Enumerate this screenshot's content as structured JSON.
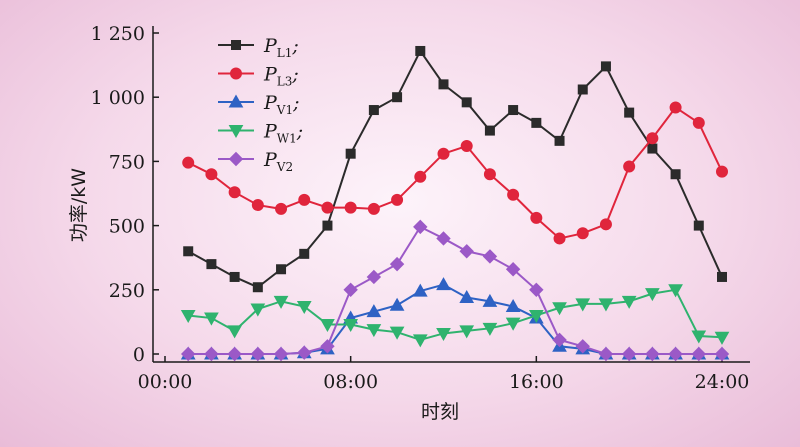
{
  "chart_data": {
    "type": "line",
    "xlabel": "时刻",
    "ylabel": "功率/kW",
    "x_ticks": [
      "00:00",
      "08:00",
      "16:00",
      "24:00"
    ],
    "xlim": [
      0,
      24
    ],
    "ylim": [
      0,
      1250
    ],
    "y_ticks": [
      {
        "value": 0,
        "label": "0"
      },
      {
        "value": 250,
        "label": "250"
      },
      {
        "value": 500,
        "label": "500"
      },
      {
        "value": 750,
        "label": "750"
      },
      {
        "value": 1000,
        "label": "1 000"
      },
      {
        "value": 1250,
        "label": "1 250"
      }
    ],
    "x": [
      1,
      2,
      3,
      4,
      5,
      6,
      7,
      8,
      9,
      10,
      11,
      12,
      13,
      14,
      15,
      16,
      17,
      18,
      19,
      20,
      21,
      22,
      23,
      24
    ],
    "legend_position": "top-left",
    "grid": false,
    "series": [
      {
        "name": "P",
        "sub": "L1",
        "suffix": ";",
        "color": "#2b2b2b",
        "marker": "square",
        "values": [
          400,
          350,
          300,
          260,
          330,
          390,
          500,
          780,
          950,
          1000,
          1180,
          1050,
          980,
          870,
          950,
          900,
          830,
          1030,
          1120,
          940,
          800,
          700,
          500,
          300
        ]
      },
      {
        "name": "P",
        "sub": "L3",
        "suffix": ";",
        "color": "#e0253c",
        "marker": "circle",
        "values": [
          745,
          700,
          630,
          580,
          565,
          600,
          570,
          570,
          565,
          600,
          690,
          780,
          810,
          700,
          620,
          530,
          450,
          470,
          505,
          730,
          840,
          960,
          900,
          710
        ]
      },
      {
        "name": "P",
        "sub": "V1",
        "suffix": ";",
        "color": "#2e62c4",
        "marker": "triangle-up",
        "values": [
          0,
          0,
          0,
          0,
          0,
          5,
          20,
          140,
          165,
          190,
          245,
          270,
          220,
          205,
          185,
          140,
          30,
          20,
          0,
          0,
          0,
          0,
          0,
          0
        ]
      },
      {
        "name": "P",
        "sub": "W1",
        "suffix": ";",
        "color": "#2fb36e",
        "marker": "triangle-down",
        "values": [
          150,
          140,
          90,
          175,
          205,
          185,
          115,
          115,
          95,
          85,
          55,
          80,
          90,
          100,
          120,
          150,
          180,
          195,
          195,
          205,
          235,
          250,
          70,
          65
        ]
      },
      {
        "name": "P",
        "sub": "V2",
        "suffix": "",
        "color": "#9b59c7",
        "marker": "diamond",
        "values": [
          0,
          0,
          0,
          0,
          0,
          5,
          30,
          250,
          300,
          350,
          495,
          450,
          400,
          380,
          330,
          250,
          55,
          30,
          0,
          0,
          0,
          0,
          0,
          0
        ]
      }
    ]
  }
}
